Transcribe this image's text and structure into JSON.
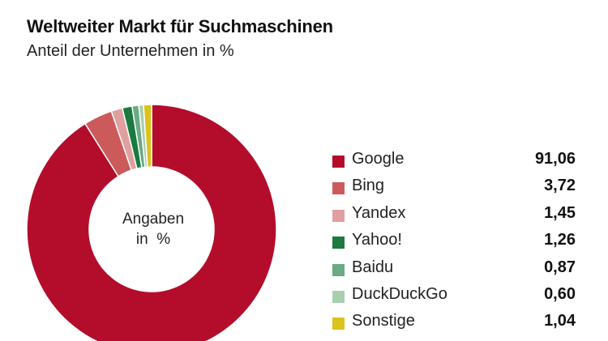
{
  "chart_data": {
    "type": "pie",
    "title": "Weltweiter Markt für Suchmaschinen",
    "subtitle": "Anteil der Unternehmen in %",
    "center_label": [
      "Angaben",
      "in  %"
    ],
    "decimal_separator": ",",
    "legend_position": "right",
    "categories": [
      "Google",
      "Bing",
      "Yandex",
      "Yahoo!",
      "Baidu",
      "DuckDuckGo",
      "Sonstige"
    ],
    "values": [
      91.06,
      3.72,
      1.45,
      1.26,
      0.87,
      0.6,
      1.04
    ],
    "value_labels": [
      "91,06",
      "3,72",
      "1,45",
      "1,26",
      "0,87",
      "0,60",
      "1,04"
    ],
    "colors": [
      "#b30d2b",
      "#cc5a5a",
      "#e0a0a0",
      "#1a7a40",
      "#6aaa84",
      "#a9cfb0",
      "#dcc21c"
    ]
  }
}
